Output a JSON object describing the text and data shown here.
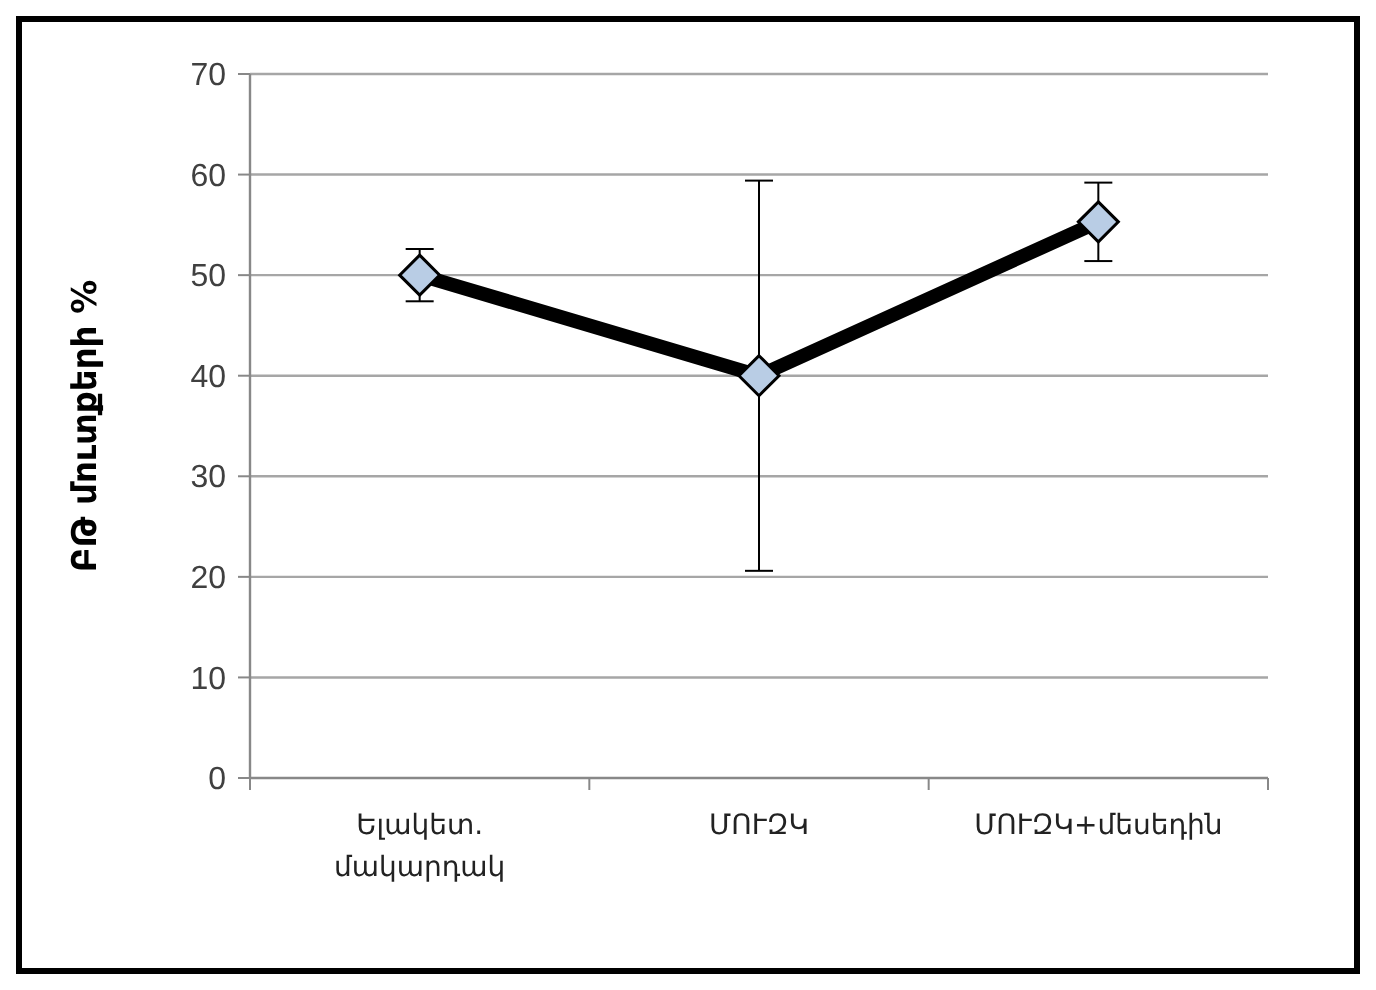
{
  "chart_data": {
    "type": "line",
    "ylabel": "ԲԹ մուտքերի %",
    "categories": [
      "Ելակետ.\nմակարդակ",
      "ՄՈՒԶԿ",
      "ՄՈՒԶԿ+մեսեդին"
    ],
    "series": [
      {
        "color": "#000000",
        "values": [
          50,
          40,
          55.3
        ],
        "errors": [
          2.6,
          19.4,
          3.9
        ]
      }
    ],
    "ylim": [
      0,
      70
    ],
    "yticks": [
      0,
      10,
      20,
      30,
      40,
      50,
      60,
      70
    ],
    "grid": "y",
    "marker": "diamond",
    "line_style": "solid"
  }
}
